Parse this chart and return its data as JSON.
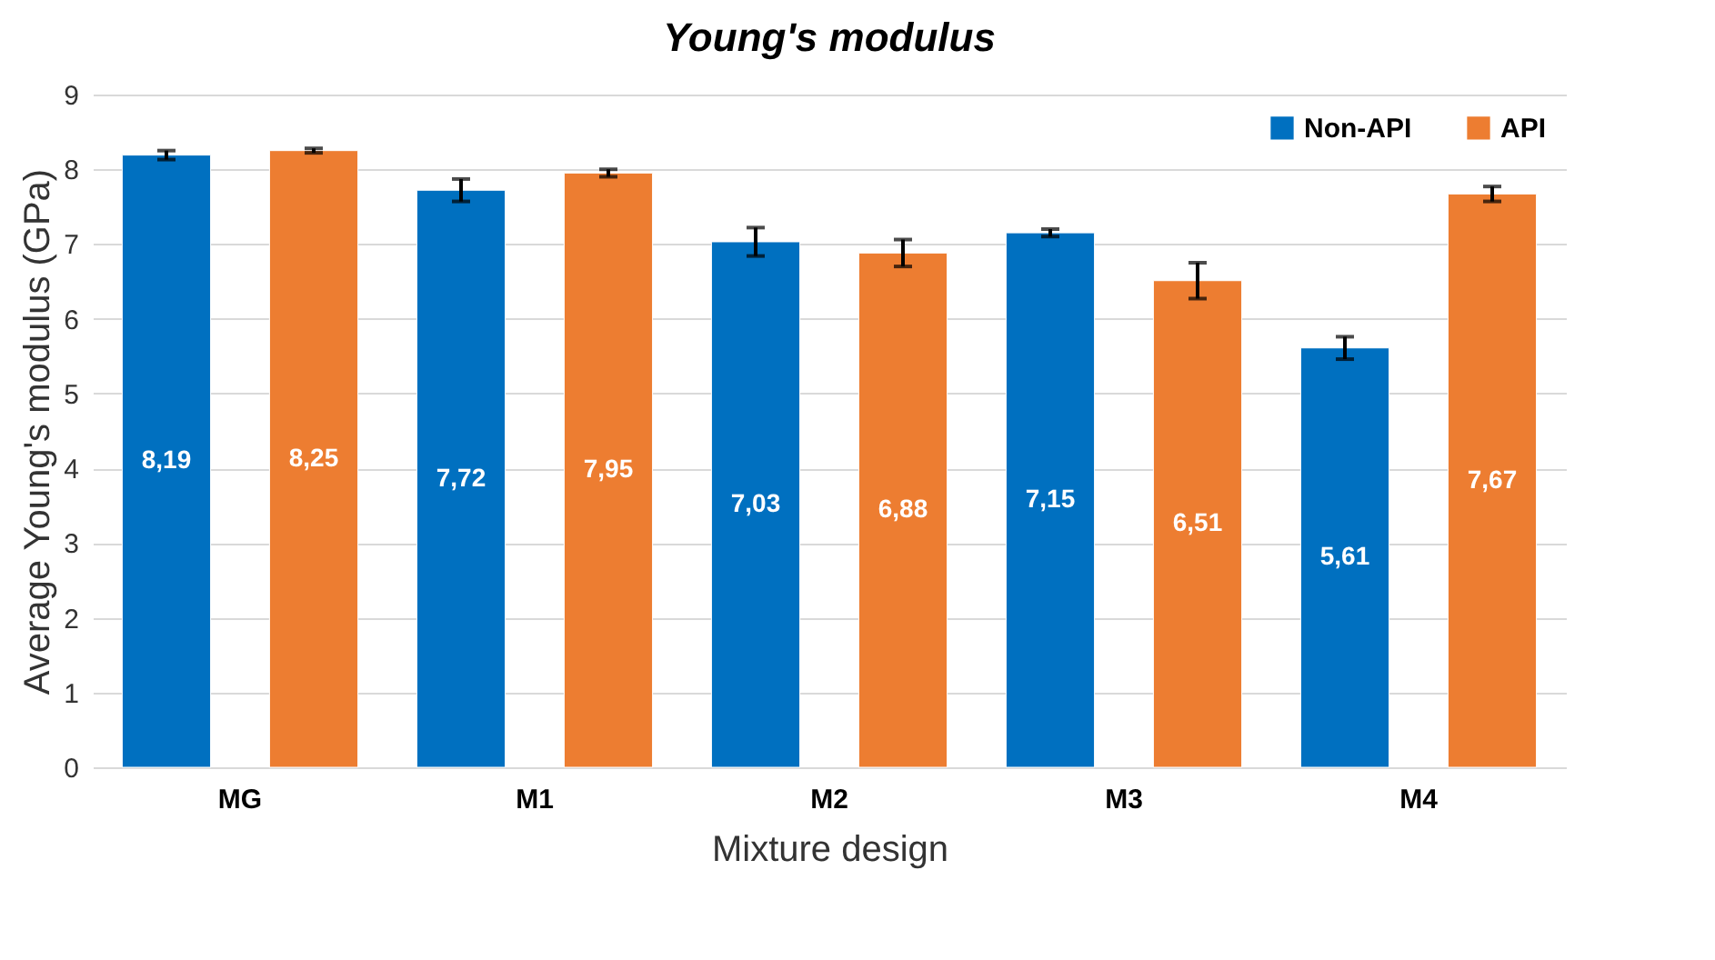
{
  "chart_data": {
    "type": "bar",
    "title": "Young's modulus",
    "xlabel": "Mixture design",
    "ylabel": "Average Young's modulus (GPa)",
    "categories": [
      "MG",
      "M1",
      "M2",
      "M3",
      "M4"
    ],
    "series": [
      {
        "name": "Non-API",
        "color": "#0070c0",
        "values": [
          8.19,
          7.72,
          7.03,
          7.15,
          5.61
        ],
        "errors": [
          0.06,
          0.15,
          0.19,
          0.05,
          0.15
        ],
        "value_labels": [
          "8,19",
          "7,72",
          "7,03",
          "7,15",
          "5,61"
        ]
      },
      {
        "name": "API",
        "color": "#ed7d31",
        "values": [
          8.25,
          7.95,
          6.88,
          6.51,
          7.67
        ],
        "errors": [
          0.03,
          0.05,
          0.18,
          0.24,
          0.1
        ],
        "value_labels": [
          "8,25",
          "7,95",
          "6,88",
          "6,51",
          "7,67"
        ]
      }
    ],
    "ylim": [
      0,
      9
    ],
    "yticks": [
      0,
      1,
      2,
      3,
      4,
      5,
      6,
      7,
      8,
      9
    ],
    "grid": "y",
    "legend": "top right"
  }
}
